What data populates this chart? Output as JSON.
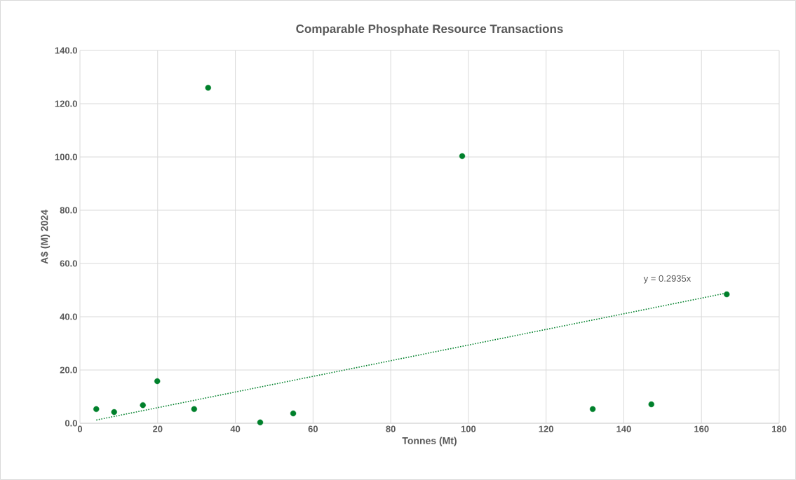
{
  "chart_data": {
    "type": "scatter",
    "title": "Comparable Phosphate Resource Transactions",
    "xlabel": "Tonnes (Mt)",
    "ylabel": "A$ (M) 2024",
    "xlim": [
      0,
      180
    ],
    "xticks": [
      0,
      20,
      40,
      60,
      80,
      100,
      120,
      140,
      160,
      180
    ],
    "ylim": [
      0,
      140
    ],
    "yticks": [
      {
        "value": 0,
        "label": "0.0"
      },
      {
        "value": 20,
        "label": "20.0"
      },
      {
        "value": 40,
        "label": "40.0"
      },
      {
        "value": 60,
        "label": "60.0"
      },
      {
        "value": 80,
        "label": "80.0"
      },
      {
        "value": 100,
        "label": "100.0"
      },
      {
        "value": 120,
        "label": "120.0"
      },
      {
        "value": 140,
        "label": "140.0"
      }
    ],
    "grid": true,
    "marker": "circle",
    "series": [
      {
        "color": "#00802b",
        "x": [
          4.2,
          8.8,
          16.2,
          19.9,
          29.4,
          33.0,
          46.4,
          54.9,
          98.4,
          132.0,
          147.1,
          166.5
        ],
        "values": [
          5.3,
          4.2,
          6.8,
          15.8,
          5.3,
          126.0,
          0.3,
          3.7,
          100.3,
          5.3,
          7.1,
          48.4
        ]
      },
      {
        "type": "line",
        "color": "#00802b",
        "line_style": "dotted",
        "marker": "none",
        "x": [
          4.2,
          166.5
        ],
        "values": [
          1.2,
          48.9
        ]
      }
    ],
    "annotations": [
      "y = 0.2935x"
    ]
  }
}
